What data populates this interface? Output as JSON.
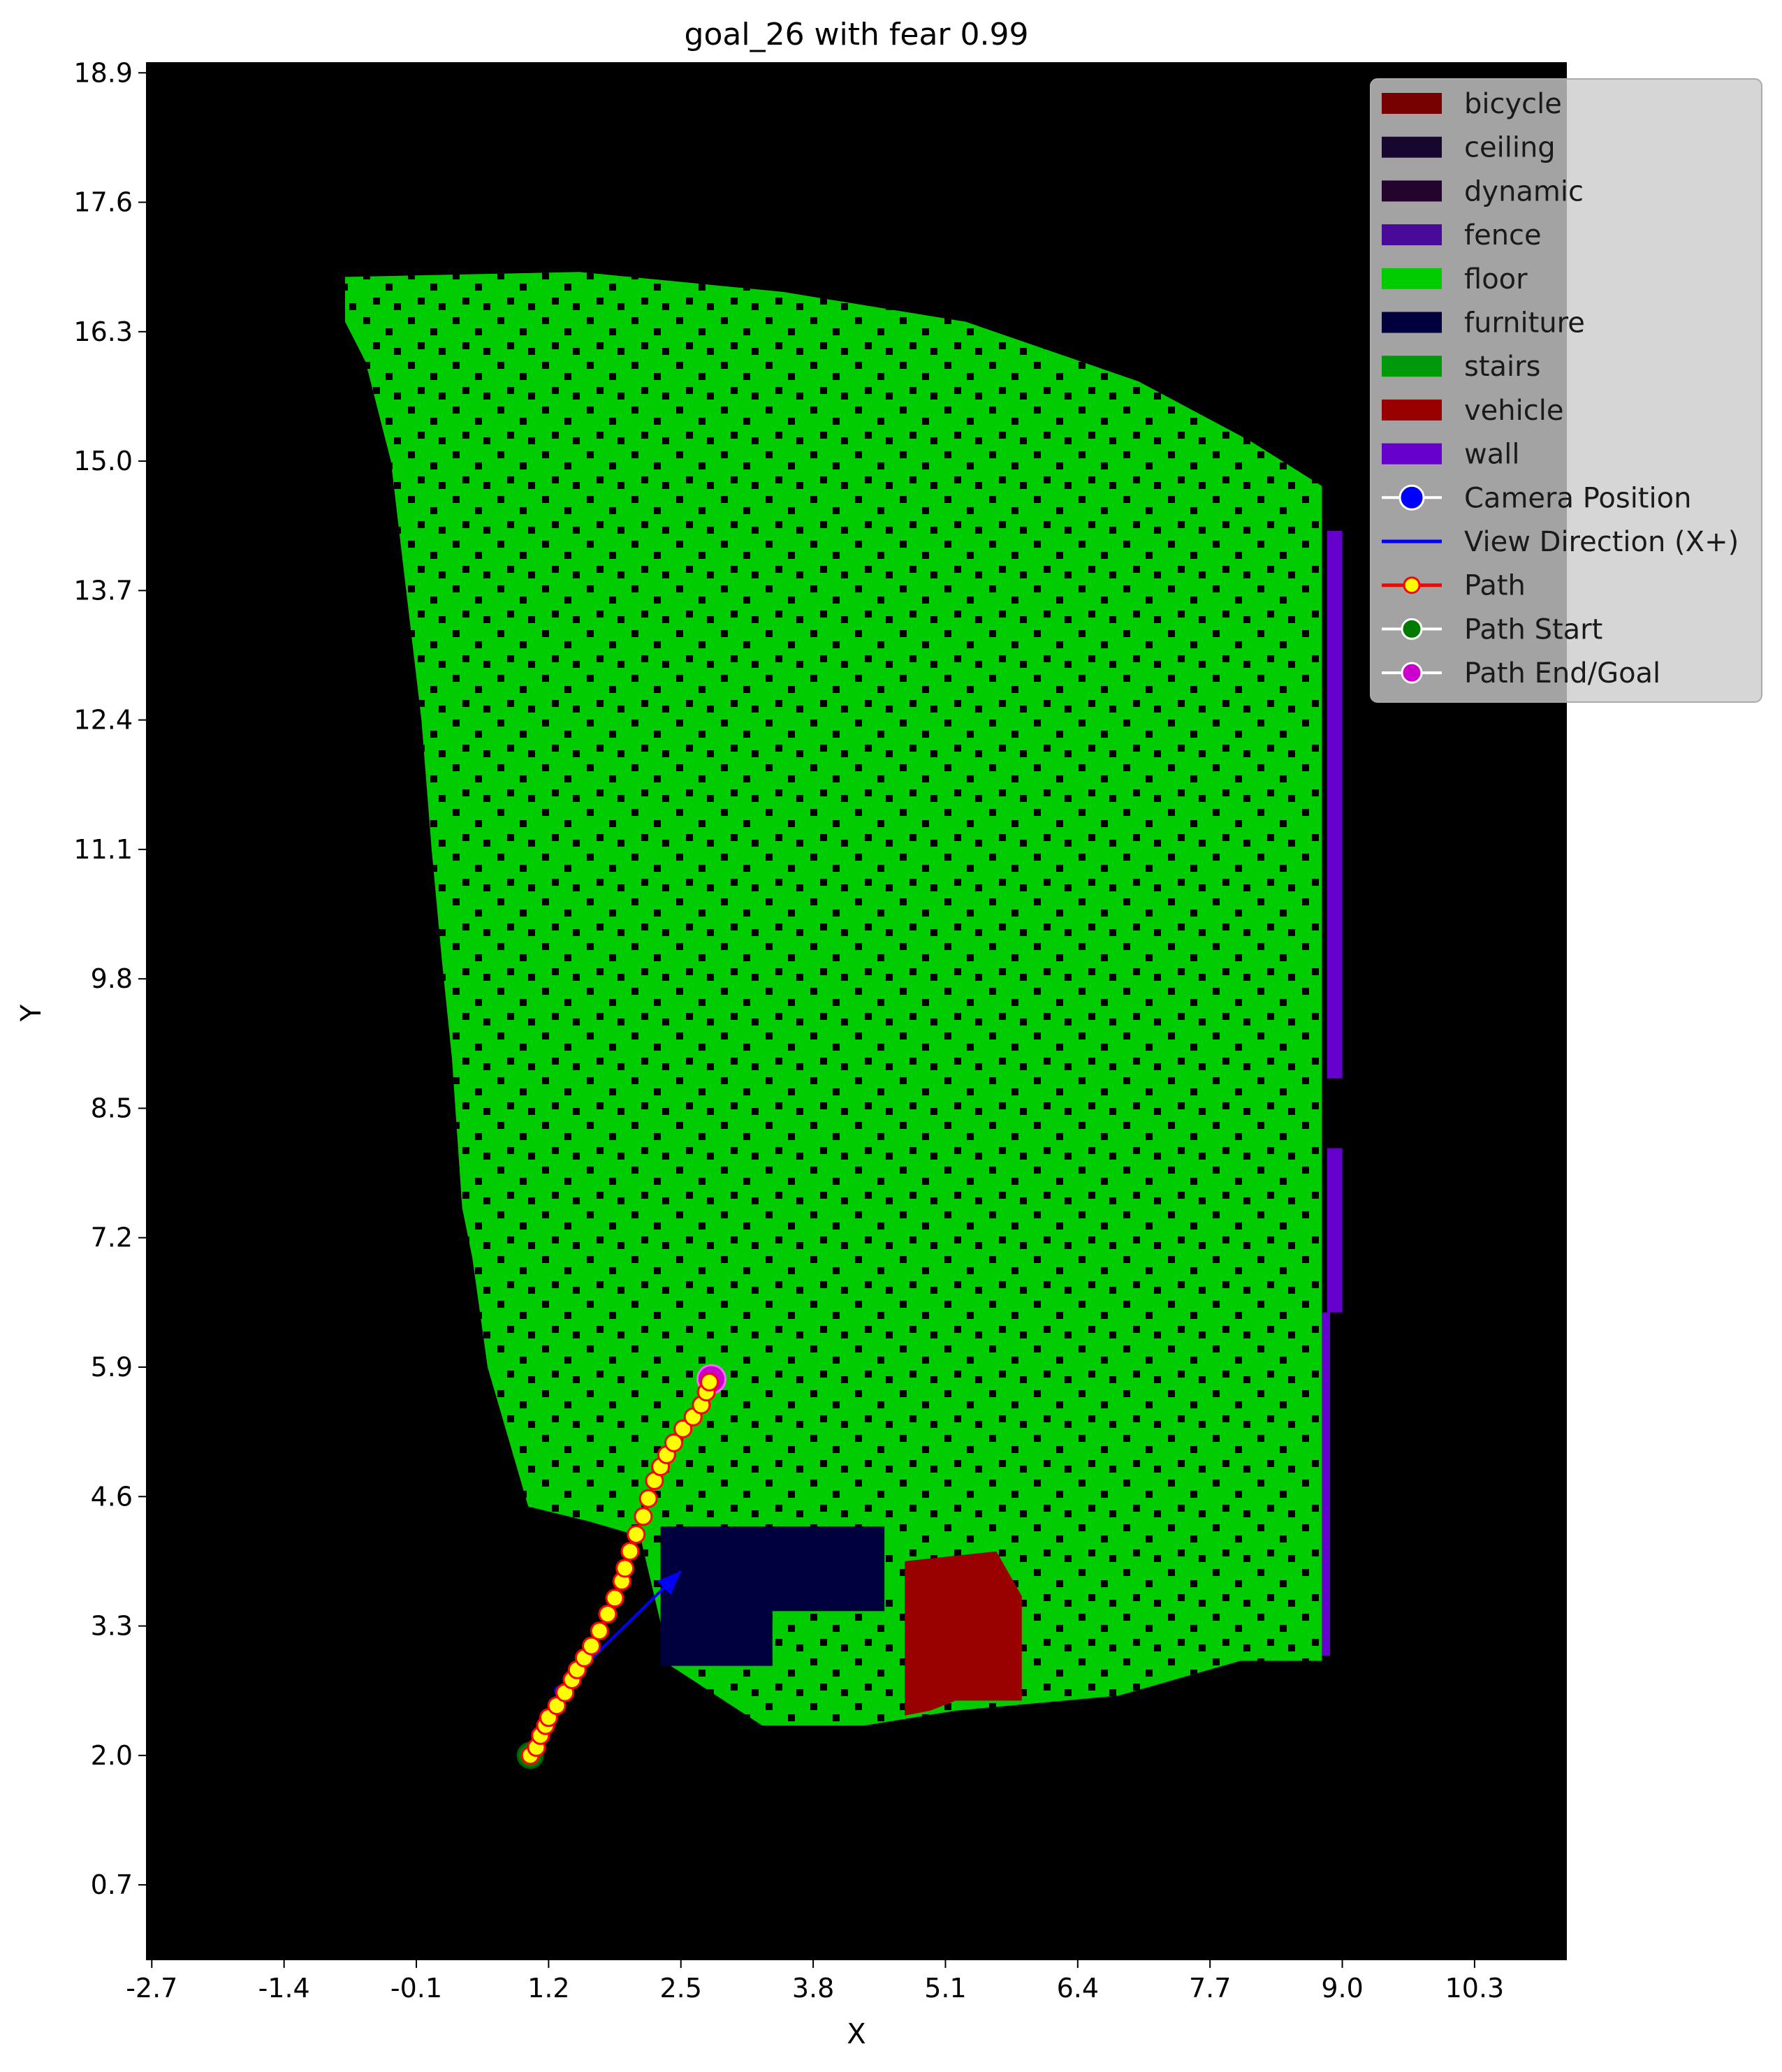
{
  "chart_data": {
    "type": "scatter",
    "title": "goal_26 with fear 0.99",
    "xlabel": "X",
    "ylabel": "Y",
    "xlim": [
      -2.75,
      11.2
    ],
    "ylim": [
      -0.05,
      19.0
    ],
    "x_ticks": [
      "-2.7",
      "-1.4",
      "-0.1",
      "1.2",
      "2.5",
      "3.8",
      "5.1",
      "6.4",
      "7.7",
      "9.0",
      "10.3"
    ],
    "y_ticks": [
      "0.7",
      "2.0",
      "3.3",
      "4.6",
      "5.9",
      "7.2",
      "8.5",
      "9.8",
      "11.1",
      "12.4",
      "13.7",
      "15.0",
      "16.3",
      "17.6",
      "18.9"
    ],
    "background_color": "#000000",
    "grid": false,
    "legend_position": "top-right",
    "legend": [
      {
        "label": "bicycle",
        "kind": "patch",
        "color": "#770000"
      },
      {
        "label": "ceiling",
        "kind": "patch",
        "color": "#17062e"
      },
      {
        "label": "dynamic",
        "kind": "patch",
        "color": "#22042c"
      },
      {
        "label": "fence",
        "kind": "patch",
        "color": "#4a0a99"
      },
      {
        "label": "floor",
        "kind": "patch",
        "color": "#00cc00"
      },
      {
        "label": "furniture",
        "kind": "patch",
        "color": "#00003f"
      },
      {
        "label": "stairs",
        "kind": "patch",
        "color": "#00990a"
      },
      {
        "label": "vehicle",
        "kind": "patch",
        "color": "#990000"
      },
      {
        "label": "wall",
        "kind": "patch",
        "color": "#6600cc"
      },
      {
        "label": "Camera Position",
        "kind": "marker",
        "color": "#0000ff"
      },
      {
        "label": "View Direction (X+)",
        "kind": "line",
        "color": "#0000ff"
      },
      {
        "label": "Path",
        "kind": "path",
        "color": "#ff0000",
        "marker_color": "#ffff00"
      },
      {
        "label": "Path Start",
        "kind": "marker",
        "color": "#007a00"
      },
      {
        "label": "Path End/Goal",
        "kind": "marker",
        "color": "#cc00cc"
      }
    ],
    "regions": [
      {
        "class": "floor",
        "color": "#00cc00",
        "polygon": [
          [
            -0.8,
            16.85
          ],
          [
            1.5,
            16.9
          ],
          [
            3.5,
            16.7
          ],
          [
            5.3,
            16.4
          ],
          [
            7.0,
            15.8
          ],
          [
            8.1,
            15.2
          ],
          [
            8.8,
            14.75
          ],
          [
            8.8,
            2.95
          ],
          [
            8.0,
            2.95
          ],
          [
            6.8,
            2.6
          ],
          [
            5.2,
            2.45
          ],
          [
            4.3,
            2.3
          ],
          [
            3.3,
            2.3
          ],
          [
            2.4,
            2.9
          ],
          [
            2.1,
            4.2
          ],
          [
            1.6,
            4.35
          ],
          [
            1.0,
            4.5
          ],
          [
            0.8,
            5.2
          ],
          [
            0.6,
            5.9
          ],
          [
            0.45,
            7.0
          ],
          [
            0.35,
            7.5
          ],
          [
            0.25,
            9.0
          ],
          [
            0.15,
            10.0
          ],
          [
            0.05,
            11.1
          ],
          [
            -0.05,
            12.4
          ],
          [
            -0.2,
            13.7
          ],
          [
            -0.35,
            15.0
          ],
          [
            -0.6,
            16.0
          ],
          [
            -0.8,
            16.4
          ]
        ]
      },
      {
        "class": "furniture",
        "color": "#00003f",
        "polygon": [
          [
            2.3,
            4.3
          ],
          [
            4.5,
            4.3
          ],
          [
            4.5,
            3.45
          ],
          [
            3.4,
            3.45
          ],
          [
            3.4,
            2.9
          ],
          [
            2.3,
            2.9
          ]
        ]
      },
      {
        "class": "vehicle",
        "color": "#990000",
        "polygon": [
          [
            4.7,
            3.95
          ],
          [
            5.6,
            4.05
          ],
          [
            5.85,
            3.6
          ],
          [
            5.85,
            2.55
          ],
          [
            5.2,
            2.55
          ],
          [
            4.95,
            2.45
          ],
          [
            4.7,
            2.4
          ]
        ]
      },
      {
        "class": "wall",
        "color": "#6600cc",
        "polygon": [
          [
            8.85,
            14.3
          ],
          [
            9.0,
            14.3
          ],
          [
            9.0,
            8.8
          ],
          [
            8.85,
            8.8
          ]
        ]
      },
      {
        "class": "wall",
        "color": "#6600cc",
        "polygon": [
          [
            8.85,
            8.1
          ],
          [
            9.0,
            8.1
          ],
          [
            9.0,
            6.45
          ],
          [
            8.85,
            6.45
          ]
        ]
      },
      {
        "class": "wall",
        "color": "#6600cc",
        "polygon": [
          [
            8.8,
            6.45
          ],
          [
            8.88,
            6.45
          ],
          [
            8.88,
            3.0
          ],
          [
            8.8,
            3.0
          ]
        ]
      }
    ],
    "camera_position": {
      "x": 1.3,
      "y": 2.65
    },
    "view_direction": {
      "x": [
        1.3,
        2.5
      ],
      "y": [
        2.65,
        3.85
      ]
    },
    "path": {
      "x": [
        1.02,
        1.08,
        1.12,
        1.17,
        1.2,
        1.28,
        1.36,
        1.43,
        1.48,
        1.55,
        1.62,
        1.7,
        1.78,
        1.85,
        1.92,
        1.95,
        2.0,
        2.06,
        2.13,
        2.18,
        2.24,
        2.3,
        2.36,
        2.43,
        2.52,
        2.62,
        2.7,
        2.75,
        2.78
      ],
      "y": [
        2.0,
        2.08,
        2.2,
        2.3,
        2.38,
        2.5,
        2.63,
        2.76,
        2.86,
        2.98,
        3.1,
        3.25,
        3.42,
        3.58,
        3.75,
        3.88,
        4.05,
        4.22,
        4.4,
        4.58,
        4.76,
        4.9,
        5.02,
        5.14,
        5.28,
        5.4,
        5.52,
        5.65,
        5.75
      ]
    },
    "path_start": {
      "x": 1.02,
      "y": 2.0
    },
    "path_end": {
      "x": 2.8,
      "y": 5.78
    }
  }
}
